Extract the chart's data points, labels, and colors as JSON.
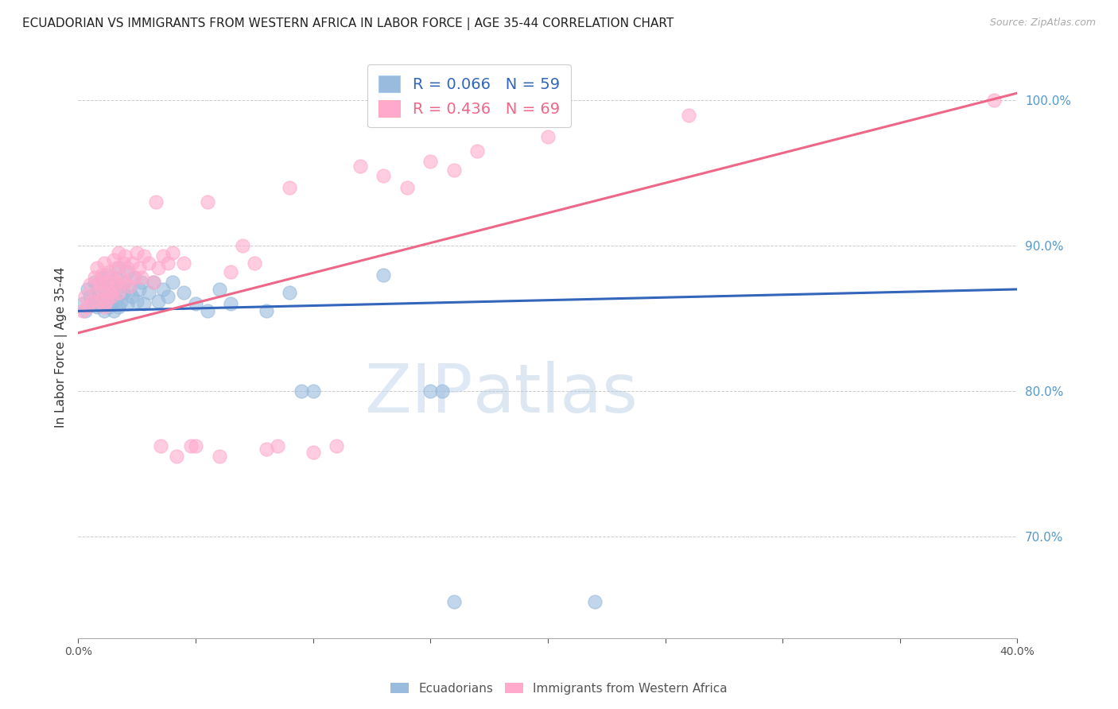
{
  "title": "ECUADORIAN VS IMMIGRANTS FROM WESTERN AFRICA IN LABOR FORCE | AGE 35-44 CORRELATION CHART",
  "source": "Source: ZipAtlas.com",
  "ylabel": "In Labor Force | Age 35-44",
  "xmin": 0.0,
  "xmax": 0.4,
  "ymin": 0.63,
  "ymax": 1.03,
  "blue_R": 0.066,
  "blue_N": 59,
  "pink_R": 0.436,
  "pink_N": 69,
  "blue_color": "#99BBDD",
  "pink_color": "#FFAACC",
  "blue_line_color": "#3366BB",
  "pink_line_color": "#EE6688",
  "right_tick_color": "#5599CC",
  "watermark": "ZIPatlas",
  "legend_blue_label": "Ecuadorians",
  "legend_pink_label": "Immigrants from Western Africa",
  "blue_trend_x0": 0.0,
  "blue_trend_y0": 0.855,
  "blue_trend_x1": 0.4,
  "blue_trend_y1": 0.87,
  "pink_trend_x0": 0.0,
  "pink_trend_y0": 0.84,
  "pink_trend_x1": 0.4,
  "pink_trend_y1": 1.005,
  "blue_scatter": [
    [
      0.002,
      0.86
    ],
    [
      0.003,
      0.855
    ],
    [
      0.004,
      0.87
    ],
    [
      0.005,
      0.865
    ],
    [
      0.006,
      0.86
    ],
    [
      0.007,
      0.875
    ],
    [
      0.007,
      0.862
    ],
    [
      0.008,
      0.858
    ],
    [
      0.008,
      0.873
    ],
    [
      0.009,
      0.865
    ],
    [
      0.01,
      0.86
    ],
    [
      0.01,
      0.878
    ],
    [
      0.011,
      0.855
    ],
    [
      0.011,
      0.87
    ],
    [
      0.012,
      0.862
    ],
    [
      0.012,
      0.88
    ],
    [
      0.013,
      0.868
    ],
    [
      0.013,
      0.858
    ],
    [
      0.014,
      0.875
    ],
    [
      0.014,
      0.86
    ],
    [
      0.015,
      0.87
    ],
    [
      0.015,
      0.855
    ],
    [
      0.016,
      0.877
    ],
    [
      0.016,
      0.863
    ],
    [
      0.017,
      0.885
    ],
    [
      0.017,
      0.858
    ],
    [
      0.018,
      0.872
    ],
    [
      0.018,
      0.862
    ],
    [
      0.019,
      0.868
    ],
    [
      0.02,
      0.875
    ],
    [
      0.021,
      0.882
    ],
    [
      0.021,
      0.86
    ],
    [
      0.022,
      0.87
    ],
    [
      0.023,
      0.865
    ],
    [
      0.024,
      0.878
    ],
    [
      0.025,
      0.862
    ],
    [
      0.026,
      0.87
    ],
    [
      0.027,
      0.875
    ],
    [
      0.028,
      0.86
    ],
    [
      0.03,
      0.868
    ],
    [
      0.032,
      0.875
    ],
    [
      0.034,
      0.862
    ],
    [
      0.036,
      0.87
    ],
    [
      0.038,
      0.865
    ],
    [
      0.04,
      0.875
    ],
    [
      0.045,
      0.868
    ],
    [
      0.05,
      0.86
    ],
    [
      0.055,
      0.855
    ],
    [
      0.06,
      0.87
    ],
    [
      0.065,
      0.86
    ],
    [
      0.08,
      0.855
    ],
    [
      0.09,
      0.868
    ],
    [
      0.095,
      0.8
    ],
    [
      0.1,
      0.8
    ],
    [
      0.13,
      0.88
    ],
    [
      0.15,
      0.8
    ],
    [
      0.155,
      0.8
    ],
    [
      0.16,
      0.655
    ],
    [
      0.22,
      0.655
    ]
  ],
  "pink_scatter": [
    [
      0.002,
      0.855
    ],
    [
      0.003,
      0.865
    ],
    [
      0.004,
      0.858
    ],
    [
      0.005,
      0.873
    ],
    [
      0.006,
      0.862
    ],
    [
      0.007,
      0.878
    ],
    [
      0.008,
      0.868
    ],
    [
      0.008,
      0.885
    ],
    [
      0.009,
      0.875
    ],
    [
      0.009,
      0.862
    ],
    [
      0.01,
      0.88
    ],
    [
      0.01,
      0.87
    ],
    [
      0.011,
      0.888
    ],
    [
      0.011,
      0.858
    ],
    [
      0.012,
      0.875
    ],
    [
      0.012,
      0.862
    ],
    [
      0.013,
      0.882
    ],
    [
      0.013,
      0.868
    ],
    [
      0.014,
      0.878
    ],
    [
      0.014,
      0.865
    ],
    [
      0.015,
      0.89
    ],
    [
      0.015,
      0.87
    ],
    [
      0.016,
      0.885
    ],
    [
      0.016,
      0.875
    ],
    [
      0.017,
      0.868
    ],
    [
      0.017,
      0.895
    ],
    [
      0.018,
      0.878
    ],
    [
      0.019,
      0.888
    ],
    [
      0.02,
      0.875
    ],
    [
      0.02,
      0.893
    ],
    [
      0.021,
      0.885
    ],
    [
      0.022,
      0.872
    ],
    [
      0.023,
      0.888
    ],
    [
      0.024,
      0.878
    ],
    [
      0.025,
      0.895
    ],
    [
      0.026,
      0.885
    ],
    [
      0.027,
      0.878
    ],
    [
      0.028,
      0.893
    ],
    [
      0.03,
      0.888
    ],
    [
      0.032,
      0.875
    ],
    [
      0.033,
      0.93
    ],
    [
      0.034,
      0.885
    ],
    [
      0.035,
      0.762
    ],
    [
      0.036,
      0.893
    ],
    [
      0.038,
      0.888
    ],
    [
      0.04,
      0.895
    ],
    [
      0.042,
      0.755
    ],
    [
      0.045,
      0.888
    ],
    [
      0.048,
      0.762
    ],
    [
      0.05,
      0.762
    ],
    [
      0.055,
      0.93
    ],
    [
      0.06,
      0.755
    ],
    [
      0.065,
      0.882
    ],
    [
      0.07,
      0.9
    ],
    [
      0.075,
      0.888
    ],
    [
      0.08,
      0.76
    ],
    [
      0.085,
      0.762
    ],
    [
      0.09,
      0.94
    ],
    [
      0.1,
      0.758
    ],
    [
      0.11,
      0.762
    ],
    [
      0.12,
      0.955
    ],
    [
      0.13,
      0.948
    ],
    [
      0.14,
      0.94
    ],
    [
      0.15,
      0.958
    ],
    [
      0.16,
      0.952
    ],
    [
      0.17,
      0.965
    ],
    [
      0.2,
      0.975
    ],
    [
      0.26,
      0.99
    ],
    [
      0.39,
      1.0
    ]
  ]
}
